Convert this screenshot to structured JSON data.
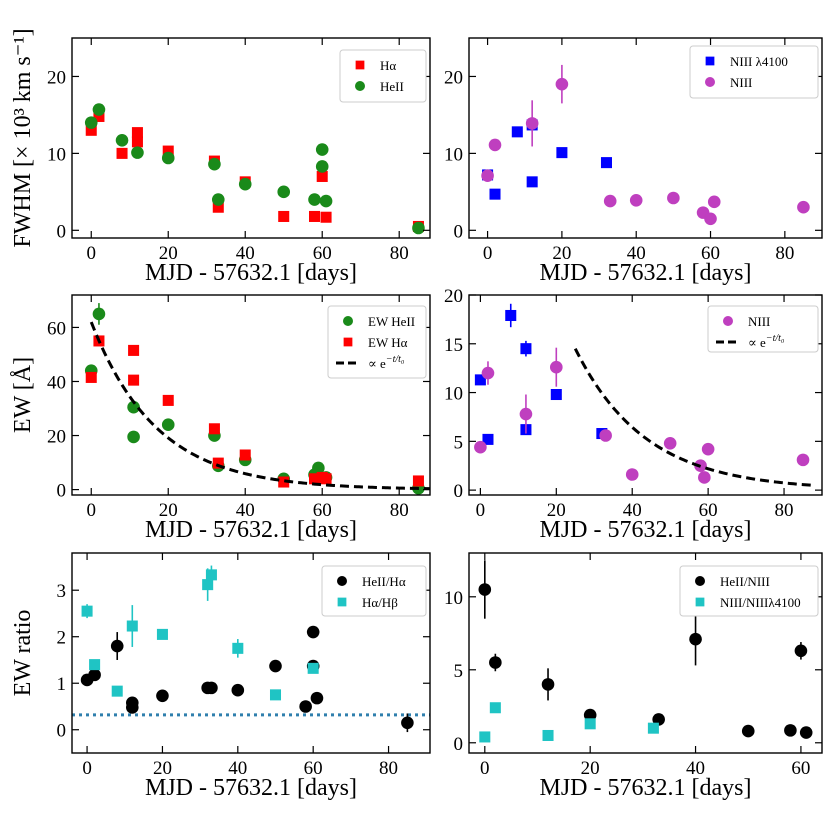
{
  "figure_title": "",
  "colors": {
    "red": "#ff0000",
    "green": "#1a8a1a",
    "blue": "#0000ff",
    "magenta": "#bf3fbf",
    "black": "#000000",
    "cyan": "#1fc4c4",
    "dotted_line": "#2f7fad"
  },
  "chart_data": [
    {
      "id": "p1",
      "type": "scatter",
      "title": "",
      "xlabel": "MJD - 57632.1 [days]",
      "ylabel": "FWHM [× 10³ km s⁻¹]",
      "xlim": [
        -5,
        88
      ],
      "ylim": [
        -1,
        25
      ],
      "xticks": [
        0,
        20,
        40,
        60,
        80
      ],
      "yticks": [
        0,
        10,
        20
      ],
      "legend": {
        "position": "top-right"
      },
      "series": [
        {
          "name": "Hα",
          "marker": "square",
          "color": "#ff0000",
          "points": [
            [
              0,
              13
            ],
            [
              2,
              14.8
            ],
            [
              8,
              10
            ],
            [
              12,
              12.7
            ],
            [
              12,
              11.5
            ],
            [
              20,
              10.3
            ],
            [
              32,
              9
            ],
            [
              33,
              3
            ],
            [
              40,
              6.3
            ],
            [
              50,
              1.8
            ],
            [
              58,
              1.8
            ],
            [
              60,
              7
            ],
            [
              61,
              1.7
            ],
            [
              85,
              0.5
            ]
          ]
        },
        {
          "name": "HeII",
          "marker": "circle",
          "color": "#1a8a1a",
          "points": [
            [
              0,
              14
            ],
            [
              2,
              15.7
            ],
            [
              8,
              11.7
            ],
            [
              12,
              10.1
            ],
            [
              20,
              9.4
            ],
            [
              32,
              8.6
            ],
            [
              33,
              4
            ],
            [
              40,
              6
            ],
            [
              50,
              5
            ],
            [
              58,
              4
            ],
            [
              60,
              10.5
            ],
            [
              60,
              8.3
            ],
            [
              61,
              3.8
            ],
            [
              85,
              0.3
            ]
          ]
        }
      ]
    },
    {
      "id": "p2",
      "type": "scatter",
      "title": "",
      "xlabel": "MJD - 57632.1 [days]",
      "ylabel": "",
      "xlim": [
        -5,
        90
      ],
      "ylim": [
        -1,
        25
      ],
      "xticks": [
        0,
        20,
        40,
        60,
        80
      ],
      "yticks": [
        0,
        10,
        20
      ],
      "legend": {
        "position": "top-right"
      },
      "series": [
        {
          "name": "NIII λ4100",
          "marker": "square",
          "color": "#0000ff",
          "points": [
            [
              0,
              7.2
            ],
            [
              2,
              4.7
            ],
            [
              8,
              12.8
            ],
            [
              12,
              13.7
            ],
            [
              12,
              6.3
            ],
            [
              20,
              10.1
            ],
            [
              32,
              8.8
            ]
          ]
        },
        {
          "name": "NIII",
          "marker": "circle",
          "color": "#bf3fbf",
          "points": [
            [
              0,
              7.1
            ],
            [
              2,
              11.1
            ],
            [
              12,
              13.9
            ],
            [
              20,
              19
            ],
            [
              33,
              3.8
            ],
            [
              40,
              3.9
            ],
            [
              50,
              4.2
            ],
            [
              58,
              2.3
            ],
            [
              60,
              1.5
            ],
            [
              61,
              3.7
            ],
            [
              85,
              3
            ]
          ],
          "errors": [
            0.4,
            0.6,
            3,
            2.5,
            0.3,
            0.3,
            0.3,
            0.3,
            0.3,
            0.3,
            0.3
          ]
        }
      ]
    },
    {
      "id": "p3",
      "type": "scatter",
      "title": "",
      "xlabel": "MJD - 57632.1 [days]",
      "ylabel": "EW [Å]",
      "xlim": [
        -5,
        88
      ],
      "ylim": [
        -2,
        72
      ],
      "xticks": [
        0,
        20,
        40,
        60,
        80
      ],
      "yticks": [
        0,
        20,
        40,
        60
      ],
      "legend": {
        "position": "top-right"
      },
      "series": [
        {
          "name": "EW HeII",
          "marker": "circle",
          "color": "#1a8a1a",
          "points": [
            [
              0,
              44
            ],
            [
              2,
              65
            ],
            [
              11,
              30.5
            ],
            [
              11,
              19.5
            ],
            [
              20,
              24
            ],
            [
              32,
              20
            ],
            [
              33,
              8.8
            ],
            [
              40,
              11
            ],
            [
              50,
              4
            ],
            [
              58,
              5.5
            ],
            [
              59,
              8
            ],
            [
              61,
              4.5
            ],
            [
              85,
              0.5
            ]
          ],
          "errors": [
            1,
            4,
            1,
            1,
            1,
            1,
            1,
            1,
            1,
            1,
            1,
            1,
            1
          ]
        },
        {
          "name": "EW Hα",
          "marker": "square",
          "color": "#ff0000",
          "points": [
            [
              0,
              41.5
            ],
            [
              2,
              55
            ],
            [
              11,
              51.5
            ],
            [
              11,
              40.5
            ],
            [
              20,
              33
            ],
            [
              32,
              22.5
            ],
            [
              33,
              9.8
            ],
            [
              40,
              12.8
            ],
            [
              50,
              2.8
            ],
            [
              58,
              4
            ],
            [
              60,
              4.5
            ],
            [
              61,
              4
            ],
            [
              85,
              3.2
            ]
          ]
        },
        {
          "name": "∝ e^{−t/t₀}",
          "marker": "none",
          "line": "dashed",
          "color": "#000000",
          "function": {
            "form": "A*exp(-(t-t_start)/t0)",
            "A": 62,
            "t0": 17,
            "t_start": 0,
            "t_end": 90
          }
        }
      ]
    },
    {
      "id": "p4",
      "type": "scatter",
      "title": "",
      "xlabel": "MJD - 57632.1 [days]",
      "ylabel": "",
      "xlim": [
        -3,
        90
      ],
      "ylim": [
        -0.5,
        20
      ],
      "xticks": [
        0,
        20,
        40,
        60,
        80
      ],
      "yticks": [
        0,
        5,
        10,
        15,
        20
      ],
      "legend": {
        "position": "top-right"
      },
      "series": [
        {
          "name": "NIII λ4100",
          "marker": "square",
          "color": "#0000ff",
          "legend": false,
          "points": [
            [
              0,
              11.3
            ],
            [
              2,
              5.2
            ],
            [
              8,
              17.9
            ],
            [
              12,
              14.5
            ],
            [
              12,
              6.2
            ],
            [
              20,
              9.8
            ],
            [
              32,
              5.8
            ]
          ],
          "errors": [
            0.5,
            0.4,
            1.2,
            0.8,
            0.4,
            0.4,
            0.4
          ]
        },
        {
          "name": "NIII",
          "marker": "circle",
          "color": "#bf3fbf",
          "points": [
            [
              0,
              4.4
            ],
            [
              2,
              12
            ],
            [
              12,
              7.8
            ],
            [
              20,
              12.6
            ],
            [
              33,
              5.6
            ],
            [
              40,
              1.6
            ],
            [
              50,
              4.8
            ],
            [
              58,
              2.5
            ],
            [
              59,
              1.3
            ],
            [
              60,
              4.2
            ],
            [
              85,
              3.1
            ]
          ],
          "errors": [
            0.3,
            1.2,
            2,
            2,
            0.3,
            0.3,
            0.3,
            0.3,
            0.3,
            0.3,
            0.3
          ]
        },
        {
          "name": "∝ e^{−t/t₀}",
          "marker": "none",
          "line": "dashed",
          "color": "#000000",
          "function": {
            "form": "A*exp(-(t-t_start)/t0)",
            "A": 14.5,
            "t0": 18.5,
            "t_start": 25,
            "t_end": 88
          }
        }
      ]
    },
    {
      "id": "p5",
      "type": "scatter",
      "title": "",
      "xlabel": "MJD - 57632.1 [days]",
      "ylabel": "EW ratio",
      "xlim": [
        -4,
        91
      ],
      "ylim": [
        -0.5,
        3.8
      ],
      "xticks": [
        0,
        20,
        40,
        60,
        80
      ],
      "yticks": [
        0,
        1,
        2,
        3
      ],
      "legend": {
        "position": "top-right"
      },
      "hline": {
        "y": 0.32,
        "style": "dotted",
        "color": "#2f7fad"
      },
      "series": [
        {
          "name": "HeII/Hα",
          "marker": "circle",
          "color": "#000000",
          "points": [
            [
              0,
              1.07
            ],
            [
              2,
              1.18
            ],
            [
              8,
              1.8
            ],
            [
              12,
              0.58
            ],
            [
              12,
              0.48
            ],
            [
              20,
              0.73
            ],
            [
              32,
              0.9
            ],
            [
              33,
              0.9
            ],
            [
              40,
              0.85
            ],
            [
              50,
              1.37
            ],
            [
              58,
              0.5
            ],
            [
              60,
              2.1
            ],
            [
              60,
              1.37
            ],
            [
              61,
              0.68
            ],
            [
              85,
              0.15
            ]
          ],
          "errors": [
            0.05,
            0.05,
            0.3,
            0.05,
            0.05,
            0.05,
            0.05,
            0.05,
            0.05,
            0.05,
            0.05,
            0.05,
            0.05,
            0.05,
            0.2
          ]
        },
        {
          "name": "Hα/Hβ",
          "marker": "square",
          "color": "#1fc4c4",
          "points": [
            [
              0,
              2.55
            ],
            [
              2,
              1.4
            ],
            [
              8,
              0.83
            ],
            [
              12,
              2.23
            ],
            [
              20,
              2.05
            ],
            [
              32,
              3.12
            ],
            [
              33,
              3.33
            ],
            [
              40,
              1.75
            ],
            [
              50,
              0.75
            ],
            [
              60,
              1.32
            ]
          ],
          "errors": [
            0.15,
            0.1,
            0.05,
            0.45,
            0.05,
            0.35,
            0.2,
            0.2,
            0.05,
            0.1
          ]
        }
      ]
    },
    {
      "id": "p6",
      "type": "scatter",
      "title": "",
      "xlabel": "MJD - 57632.1 [days]",
      "ylabel": "",
      "xlim": [
        -3,
        64
      ],
      "ylim": [
        -0.7,
        13
      ],
      "xticks": [
        0,
        20,
        40,
        60
      ],
      "yticks": [
        0,
        5,
        10
      ],
      "legend": {
        "position": "top-right"
      },
      "series": [
        {
          "name": "HeII/NIII",
          "marker": "circle",
          "color": "#000000",
          "points": [
            [
              0,
              10.5
            ],
            [
              2,
              5.5
            ],
            [
              12,
              4
            ],
            [
              20,
              1.9
            ],
            [
              33,
              1.6
            ],
            [
              40,
              7.1
            ],
            [
              50,
              0.8
            ],
            [
              58,
              0.85
            ],
            [
              60,
              6.3
            ],
            [
              61,
              0.7
            ]
          ],
          "errors": [
            2,
            0.6,
            1.1,
            0.2,
            0.2,
            1.8,
            0.1,
            0.1,
            0.6,
            0.1
          ]
        },
        {
          "name": "NIII/NIIIλ4100",
          "marker": "square",
          "color": "#1fc4c4",
          "points": [
            [
              0,
              0.4
            ],
            [
              2,
              2.4
            ],
            [
              12,
              0.5
            ],
            [
              20,
              1.3
            ],
            [
              32,
              1
            ]
          ]
        }
      ]
    }
  ]
}
